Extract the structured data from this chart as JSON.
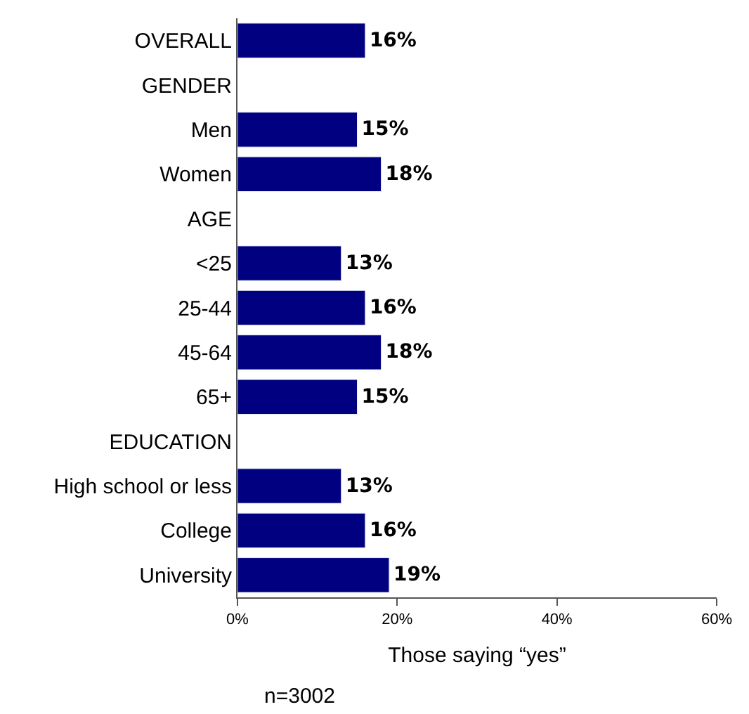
{
  "chart_data": {
    "type": "bar",
    "orientation": "horizontal",
    "xlabel": "Those saying “yes”",
    "categories": [
      "OVERALL",
      "GENDER",
      "Men",
      "Women",
      "AGE",
      "<25",
      "25-44",
      "45-64",
      "65+",
      "EDUCATION",
      "High school or less",
      "College",
      "University"
    ],
    "values": [
      16,
      null,
      15,
      18,
      null,
      13,
      16,
      18,
      15,
      null,
      13,
      16,
      19
    ],
    "value_labels": [
      "16%",
      null,
      "15%",
      "18%",
      null,
      "13%",
      "16%",
      "18%",
      "15%",
      null,
      "13%",
      "16%",
      "19%"
    ],
    "color": "#000080",
    "xlim": [
      0,
      60
    ],
    "xticks": [
      {
        "value": 0,
        "label": "0%"
      },
      {
        "value": 20,
        "label": "20%"
      },
      {
        "value": 40,
        "label": "40%"
      },
      {
        "value": 60,
        "label": "60%"
      }
    ],
    "legend": false,
    "annotations": [
      "n=3002"
    ]
  }
}
